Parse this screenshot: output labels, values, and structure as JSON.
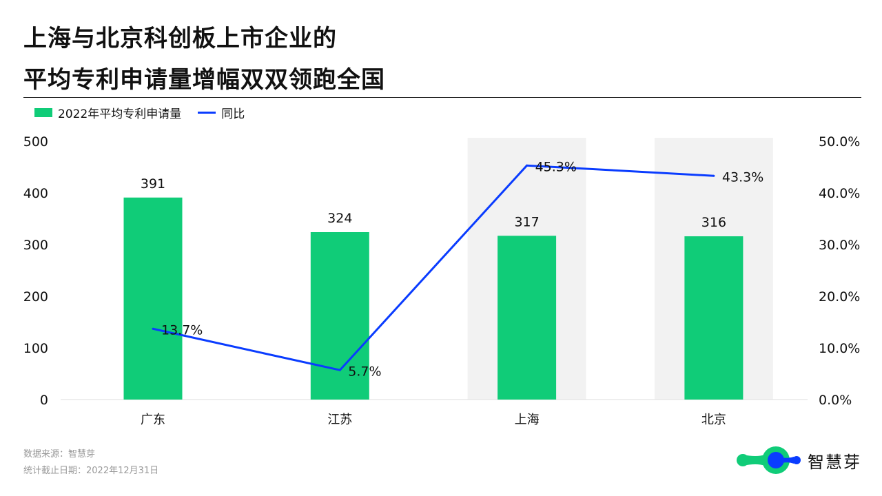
{
  "title": [
    "上海与北京科创板上市企业的",
    "平均专利申请量增幅双双领跑全国"
  ],
  "footer": {
    "source": "数据来源：智慧芽",
    "date": "统计截止日期：2022年12月31日"
  },
  "logo": {
    "text": "智慧芽"
  },
  "chart_data": {
    "type": "bar+line",
    "categories": [
      "广东",
      "江苏",
      "上海",
      "北京"
    ],
    "highlighted": [
      "上海",
      "北京"
    ],
    "series": [
      {
        "name": "2022年平均专利申请量",
        "type": "bar",
        "axis": "left",
        "values": [
          391,
          324,
          317,
          316
        ],
        "labels": [
          "391",
          "324",
          "317",
          "316"
        ],
        "color": "#10cc78"
      },
      {
        "name": "同比",
        "type": "line",
        "axis": "right",
        "values": [
          13.7,
          5.7,
          45.3,
          43.3
        ],
        "labels": [
          "13.7%",
          "5.7%",
          "45.3%",
          "43.3%"
        ],
        "color": "#0a3cff"
      }
    ],
    "left_axis": {
      "range": [
        0,
        500
      ],
      "ticks": [
        "0",
        "100",
        "200",
        "300",
        "400",
        "500"
      ]
    },
    "right_axis": {
      "range": [
        0,
        50
      ],
      "ticks": [
        "0.0%",
        "10.0%",
        "20.0%",
        "30.0%",
        "40.0%",
        "50.0%"
      ]
    },
    "legend": "top-left",
    "grid": false
  }
}
